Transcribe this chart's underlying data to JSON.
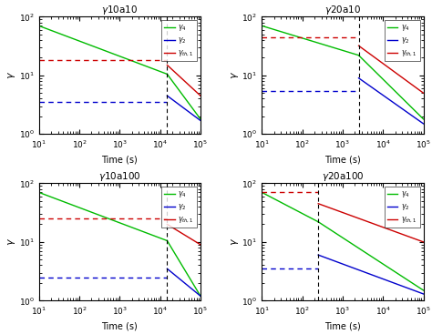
{
  "subplots": [
    {
      "title": "$_{\\gamma}$10a10",
      "t_enc": 15000.0,
      "t_start": 10,
      "t_end": 100000.0,
      "gamma4_init": 70,
      "gamma4_enc": 10.5,
      "gamma4_post_end": 1.8,
      "gamma2_dashed": 3.5,
      "gamma2_post_start": 4.5,
      "gamma2_post_end": 1.7,
      "gammaTh_dashed": 18,
      "gammaTh_post_start": 15,
      "gammaTh_post_end": 4.5
    },
    {
      "title": "$_{\\gamma}$20a10",
      "t_enc": 2500.0,
      "t_start": 10,
      "t_end": 100000.0,
      "gamma4_init": 70,
      "gamma4_enc": 22,
      "gamma4_post_end": 1.8,
      "gamma2_dashed": 5.5,
      "gamma2_post_start": 9.0,
      "gamma2_post_end": 1.5,
      "gammaTh_dashed": 45,
      "gammaTh_post_start": 32,
      "gammaTh_post_end": 5.0
    },
    {
      "title": "$_{\\gamma}$10a100",
      "t_enc": 15000.0,
      "t_start": 10,
      "t_end": 100000.0,
      "gamma4_init": 70,
      "gamma4_enc": 10.5,
      "gamma4_post_end": 1.2,
      "gamma2_dashed": 2.5,
      "gamma2_post_start": 3.5,
      "gamma2_post_end": 1.2,
      "gammaTh_dashed": 25,
      "gammaTh_post_start": 20,
      "gammaTh_post_end": 9.0
    },
    {
      "title": "$_{\\gamma}$20a100",
      "t_enc": 250.0,
      "t_start": 10,
      "t_end": 100000.0,
      "gamma4_init": 70,
      "gamma4_enc": 22,
      "gamma4_post_end": 1.5,
      "gamma2_dashed": 3.5,
      "gamma2_post_start": 6.0,
      "gamma2_post_end": 1.3,
      "gammaTh_dashed": 70,
      "gammaTh_post_start": 45,
      "gammaTh_post_end": 10.0
    }
  ],
  "colors": {
    "gamma4": "#00bb00",
    "gamma2": "#0000cc",
    "gammaTh": "#cc0000"
  },
  "xlim": [
    10,
    100000.0
  ],
  "ylim": [
    1,
    100
  ],
  "xlabel": "Time (s)",
  "ylabel": "$\\gamma$",
  "legend_labels": [
    "$\\gamma_4$",
    "$\\gamma_2$",
    "$\\gamma_{th,1}$"
  ]
}
